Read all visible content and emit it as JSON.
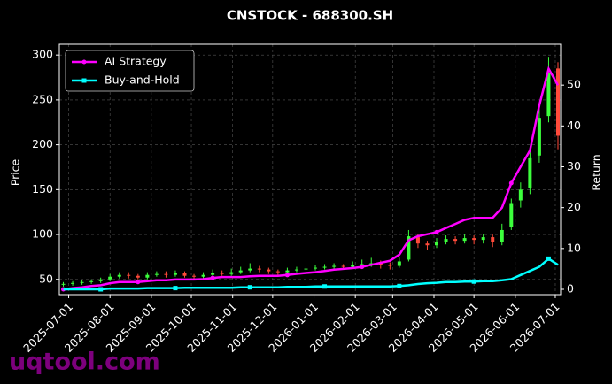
{
  "chart_data": {
    "type": "candlestick",
    "title": "CNSTOCK - 688300.SH",
    "ylabel": "Price",
    "y2label": "Return",
    "watermark": "uqtool.com",
    "legend_loc": "upper left",
    "grid": true,
    "up_color": "#3cff3c",
    "down_color": "#ff4a3a",
    "xlim": [
      "2025-06-24",
      "2026-07-05"
    ],
    "xticks": [
      "2025-07-01",
      "2025-08-01",
      "2025-09-01",
      "2025-10-01",
      "2025-11-01",
      "2025-12-01",
      "2026-01-01",
      "2026-02-01",
      "2026-03-01",
      "2026-04-01",
      "2026-05-01",
      "2026-06-01",
      "2026-07-01"
    ],
    "ylim": [
      33,
      312
    ],
    "yticks": [
      50,
      100,
      150,
      200,
      250,
      300
    ],
    "y2lim": [
      -1.3,
      60
    ],
    "y2ticks": [
      0,
      10,
      20,
      30,
      40,
      50
    ],
    "x": [
      "2025-06-27",
      "2025-07-04",
      "2025-07-11",
      "2025-07-18",
      "2025-07-25",
      "2025-08-01",
      "2025-08-08",
      "2025-08-15",
      "2025-08-22",
      "2025-08-29",
      "2025-09-05",
      "2025-09-12",
      "2025-09-19",
      "2025-09-26",
      "2025-10-03",
      "2025-10-10",
      "2025-10-17",
      "2025-10-24",
      "2025-10-31",
      "2025-11-07",
      "2025-11-14",
      "2025-11-21",
      "2025-11-28",
      "2025-12-05",
      "2025-12-12",
      "2025-12-19",
      "2025-12-26",
      "2026-01-02",
      "2026-01-09",
      "2026-01-16",
      "2026-01-23",
      "2026-01-30",
      "2026-02-06",
      "2026-02-13",
      "2026-02-20",
      "2026-02-27",
      "2026-03-06",
      "2026-03-13",
      "2026-03-20",
      "2026-03-27",
      "2026-04-03",
      "2026-04-10",
      "2026-04-17",
      "2026-04-24",
      "2026-05-01",
      "2026-05-08",
      "2026-05-15",
      "2026-05-22",
      "2026-05-29",
      "2026-06-05",
      "2026-06-12",
      "2026-06-19",
      "2026-06-26",
      "2026-07-03"
    ],
    "open": [
      44,
      45,
      46,
      47,
      48,
      50,
      53,
      55,
      54,
      52,
      55,
      56,
      55,
      57,
      54,
      53,
      55,
      57,
      56,
      58,
      60,
      62,
      61,
      59,
      58,
      60,
      61,
      62,
      63,
      64,
      65,
      64,
      66,
      67,
      68,
      66,
      65,
      72,
      97,
      90,
      88,
      92,
      95,
      93,
      96,
      94,
      97,
      92,
      108,
      138,
      152,
      188,
      232,
      285
    ],
    "high": [
      47,
      48,
      49,
      50,
      52,
      56,
      58,
      58,
      56,
      58,
      59,
      59,
      60,
      59,
      56,
      58,
      61,
      60,
      62,
      64,
      68,
      65,
      63,
      61,
      63,
      64,
      65,
      66,
      67,
      68,
      67,
      70,
      72,
      74,
      71,
      69,
      75,
      105,
      100,
      93,
      96,
      99,
      98,
      100,
      99,
      101,
      100,
      112,
      140,
      158,
      195,
      245,
      298,
      292
    ],
    "low": [
      42,
      43,
      44,
      45,
      46,
      48,
      51,
      51,
      50,
      50,
      53,
      52,
      53,
      52,
      50,
      51,
      53,
      54,
      54,
      56,
      58,
      58,
      56,
      55,
      56,
      58,
      59,
      60,
      61,
      62,
      61,
      62,
      63,
      64,
      62,
      61,
      63,
      70,
      85,
      83,
      85,
      89,
      89,
      90,
      89,
      90,
      86,
      88,
      105,
      130,
      145,
      180,
      225,
      195
    ],
    "close": [
      45,
      46,
      47,
      48,
      50,
      53,
      55,
      54,
      52,
      55,
      56,
      55,
      57,
      54,
      53,
      55,
      57,
      56,
      58,
      60,
      62,
      61,
      59,
      58,
      60,
      61,
      62,
      63,
      64,
      65,
      64,
      66,
      67,
      68,
      66,
      65,
      70,
      98,
      90,
      88,
      92,
      95,
      93,
      96,
      94,
      97,
      92,
      105,
      135,
      150,
      185,
      230,
      280,
      210
    ],
    "series": [
      {
        "name": "AI Strategy",
        "color": "#ff00ff",
        "axis": "y2",
        "marker": "circle",
        "values": [
          0,
          0.3,
          0.5,
          0.8,
          1,
          1.5,
          1.8,
          1.8,
          1.8,
          2,
          2.2,
          2.2,
          2.4,
          2.4,
          2.4,
          2.5,
          2.8,
          3,
          3,
          3,
          3.2,
          3.3,
          3.3,
          3.3,
          3.5,
          3.8,
          4,
          4.2,
          4.5,
          4.8,
          5,
          5.2,
          5.5,
          6,
          6.5,
          7,
          8.5,
          12,
          13,
          13.5,
          14,
          15,
          16,
          17,
          17.5,
          17.5,
          17.5,
          20,
          26,
          30,
          34,
          45,
          54,
          50
        ]
      },
      {
        "name": "Buy-and-Hold",
        "color": "#00ffff",
        "axis": "y2",
        "marker": "square",
        "values": [
          0,
          0,
          0,
          0,
          0,
          0.2,
          0.2,
          0.2,
          0.2,
          0.3,
          0.3,
          0.3,
          0.3,
          0.4,
          0.4,
          0.4,
          0.4,
          0.4,
          0.4,
          0.5,
          0.5,
          0.5,
          0.5,
          0.5,
          0.6,
          0.6,
          0.6,
          0.7,
          0.7,
          0.7,
          0.7,
          0.7,
          0.7,
          0.7,
          0.7,
          0.7,
          0.8,
          1,
          1.3,
          1.5,
          1.6,
          1.8,
          1.8,
          1.9,
          1.9,
          2,
          2,
          2.2,
          2.5,
          3.5,
          4.5,
          5.5,
          7.5,
          6
        ]
      }
    ]
  }
}
